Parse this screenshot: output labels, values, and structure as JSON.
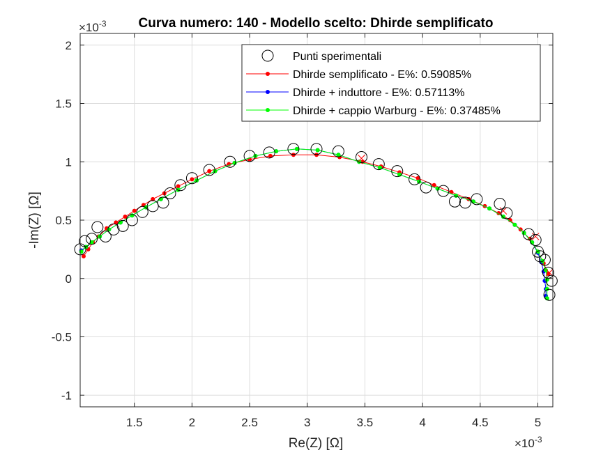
{
  "chart_data": {
    "type": "scatter",
    "title": "Curva numero: 140 - Modello scelto: Dhirde semplificato",
    "xlabel": "Re(Z) [Ω]",
    "ylabel": "-Im(Z) [Ω]",
    "x_exponent": "×10",
    "x_exponent_power": "-3",
    "y_exponent": "×10",
    "y_exponent_power": "-3",
    "xlim": [
      1.03,
      5.13
    ],
    "ylim": [
      -1.1,
      2.1
    ],
    "xticks": [
      1.5,
      2,
      2.5,
      3,
      3.5,
      4,
      4.5,
      5
    ],
    "xtick_labels": [
      "1.5",
      "2",
      "2.5",
      "3",
      "3.5",
      "4",
      "4.5",
      "5"
    ],
    "yticks": [
      -1,
      -0.5,
      0,
      0.5,
      1,
      1.5,
      2
    ],
    "ytick_labels": [
      "-1",
      "-0.5",
      "0",
      "0.5",
      "1",
      "1.5",
      "2"
    ],
    "grid": true,
    "legend_position": "top-right",
    "colors": {
      "exp": "#000000",
      "s1": "#ff0000",
      "s2": "#0000ff",
      "s3": "#00ff00",
      "grid": "#dcdcdc",
      "axis": "#262626"
    },
    "series": [
      {
        "name": "Punti sperimentali",
        "kind": "marker",
        "x": [
          1.03,
          1.07,
          1.13,
          1.18,
          1.25,
          1.32,
          1.4,
          1.48,
          1.57,
          1.66,
          1.75,
          1.81,
          1.9,
          2.0,
          2.15,
          2.33,
          2.5,
          2.67,
          2.88,
          3.08,
          3.27,
          3.47,
          3.62,
          3.78,
          3.93,
          4.03,
          4.18,
          4.28,
          4.37,
          4.47,
          4.67,
          4.73,
          4.92,
          4.98,
          5.0,
          5.02,
          5.06,
          5.09,
          5.12,
          5.1
        ],
        "y": [
          0.25,
          0.32,
          0.34,
          0.44,
          0.36,
          0.42,
          0.45,
          0.5,
          0.57,
          0.62,
          0.65,
          0.73,
          0.8,
          0.86,
          0.93,
          1.0,
          1.05,
          1.08,
          1.11,
          1.11,
          1.09,
          1.04,
          0.98,
          0.92,
          0.85,
          0.78,
          0.75,
          0.66,
          0.65,
          0.68,
          0.64,
          0.56,
          0.38,
          0.33,
          0.23,
          0.19,
          0.16,
          0.05,
          -0.02,
          -0.14
        ]
      },
      {
        "name": "Dhirde semplificato - E%: 0.59085%",
        "kind": "line",
        "x": [
          1.06,
          1.1,
          1.14,
          1.19,
          1.26,
          1.34,
          1.42,
          1.5,
          1.58,
          1.66,
          1.76,
          1.88,
          2.0,
          2.15,
          2.32,
          2.5,
          2.68,
          2.88,
          3.08,
          3.28,
          3.48,
          3.64,
          3.8,
          3.96,
          4.1,
          4.25,
          4.4,
          4.54,
          4.66,
          4.76,
          4.85,
          4.93,
          5.0,
          5.05,
          5.09
        ],
        "y": [
          0.19,
          0.25,
          0.31,
          0.36,
          0.43,
          0.48,
          0.53,
          0.58,
          0.63,
          0.68,
          0.73,
          0.79,
          0.85,
          0.92,
          0.98,
          1.02,
          1.05,
          1.06,
          1.06,
          1.04,
          1.0,
          0.96,
          0.91,
          0.86,
          0.8,
          0.74,
          0.68,
          0.62,
          0.56,
          0.5,
          0.42,
          0.34,
          0.23,
          0.13,
          0.04
        ]
      },
      {
        "name": "Dhirde + induttore - E%: 0.57113%",
        "kind": "line",
        "x": [
          1.04,
          1.08,
          1.13,
          1.2,
          1.28,
          1.38,
          1.48,
          1.6,
          1.73,
          1.88,
          2.04,
          2.2,
          2.37,
          2.55,
          2.73,
          2.91,
          3.09,
          3.27,
          3.45,
          3.63,
          3.8,
          3.97,
          4.13,
          4.29,
          4.44,
          4.58,
          4.7,
          4.8,
          4.88,
          4.95,
          5.0,
          5.03,
          5.05,
          5.06,
          5.07,
          5.07
        ],
        "y": [
          0.24,
          0.27,
          0.31,
          0.36,
          0.42,
          0.48,
          0.54,
          0.61,
          0.68,
          0.76,
          0.84,
          0.92,
          0.99,
          1.05,
          1.09,
          1.11,
          1.1,
          1.06,
          1.0,
          0.95,
          0.89,
          0.83,
          0.77,
          0.71,
          0.66,
          0.6,
          0.53,
          0.46,
          0.39,
          0.31,
          0.22,
          0.14,
          0.06,
          -0.02,
          -0.09,
          -0.15
        ]
      },
      {
        "name": "Dhirde + cappio Warburg - E%: 0.37485%",
        "kind": "line",
        "x": [
          1.04,
          1.08,
          1.13,
          1.2,
          1.28,
          1.38,
          1.48,
          1.6,
          1.73,
          1.88,
          2.04,
          2.2,
          2.37,
          2.55,
          2.73,
          2.91,
          3.09,
          3.27,
          3.45,
          3.63,
          3.8,
          3.97,
          4.13,
          4.29,
          4.44,
          4.58,
          4.7,
          4.8,
          4.88,
          4.95,
          5.0,
          5.04,
          5.07,
          5.08,
          5.08,
          5.08
        ],
        "y": [
          0.23,
          0.27,
          0.31,
          0.36,
          0.42,
          0.48,
          0.54,
          0.61,
          0.68,
          0.76,
          0.84,
          0.92,
          0.99,
          1.05,
          1.09,
          1.11,
          1.1,
          1.06,
          1.0,
          0.95,
          0.89,
          0.83,
          0.77,
          0.71,
          0.66,
          0.6,
          0.53,
          0.46,
          0.39,
          0.31,
          0.23,
          0.15,
          0.07,
          -0.01,
          -0.09,
          -0.17
        ]
      }
    ],
    "red_x_markers": {
      "x": [
        3.47,
        4.7,
        4.98,
        5.1
      ],
      "y": [
        1.03,
        0.58,
        0.36,
        0.05
      ]
    }
  }
}
